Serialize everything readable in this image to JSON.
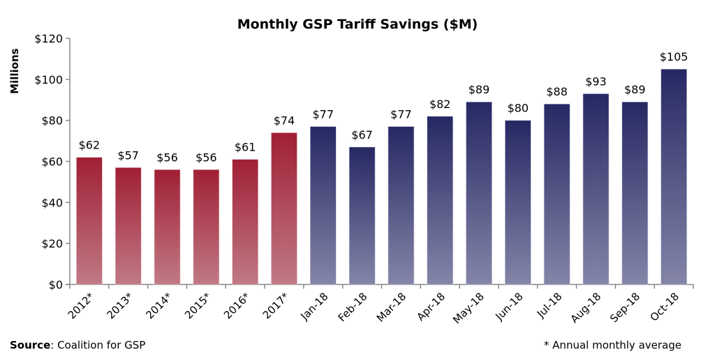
{
  "chart_data": {
    "type": "bar",
    "title": "Monthly GSP Tariff Savings ($M)",
    "ylabel": "Millions",
    "xlabel": "",
    "ylim": [
      0,
      120
    ],
    "yticks": [
      "$0",
      "$20",
      "$40",
      "$60",
      "$80",
      "$100",
      "$120"
    ],
    "categories": [
      "2012*",
      "2013*",
      "2014*",
      "2015*",
      "2016*",
      "2017*",
      "Jan-18",
      "Feb-18",
      "Mar-18",
      "Apr-18",
      "May-18",
      "Jun-18",
      "Jul-18",
      "Aug-18",
      "Sep-18",
      "Oct-18"
    ],
    "values": [
      62,
      57,
      56,
      56,
      61,
      74,
      77,
      67,
      77,
      82,
      89,
      80,
      88,
      93,
      89,
      105
    ],
    "data_labels": [
      "$62",
      "$57",
      "$56",
      "$56",
      "$61",
      "$74",
      "$77",
      "$67",
      "$77",
      "$82",
      "$89",
      "$80",
      "$88",
      "$93",
      "$89",
      "$105"
    ],
    "colors": {
      "annual": "#a01f35",
      "monthly": "#262863"
    },
    "grid": false,
    "legend": "none"
  },
  "footer": {
    "source_label": "Source",
    "source_text": ": Coalition for GSP",
    "note": "* Annual monthly average"
  }
}
